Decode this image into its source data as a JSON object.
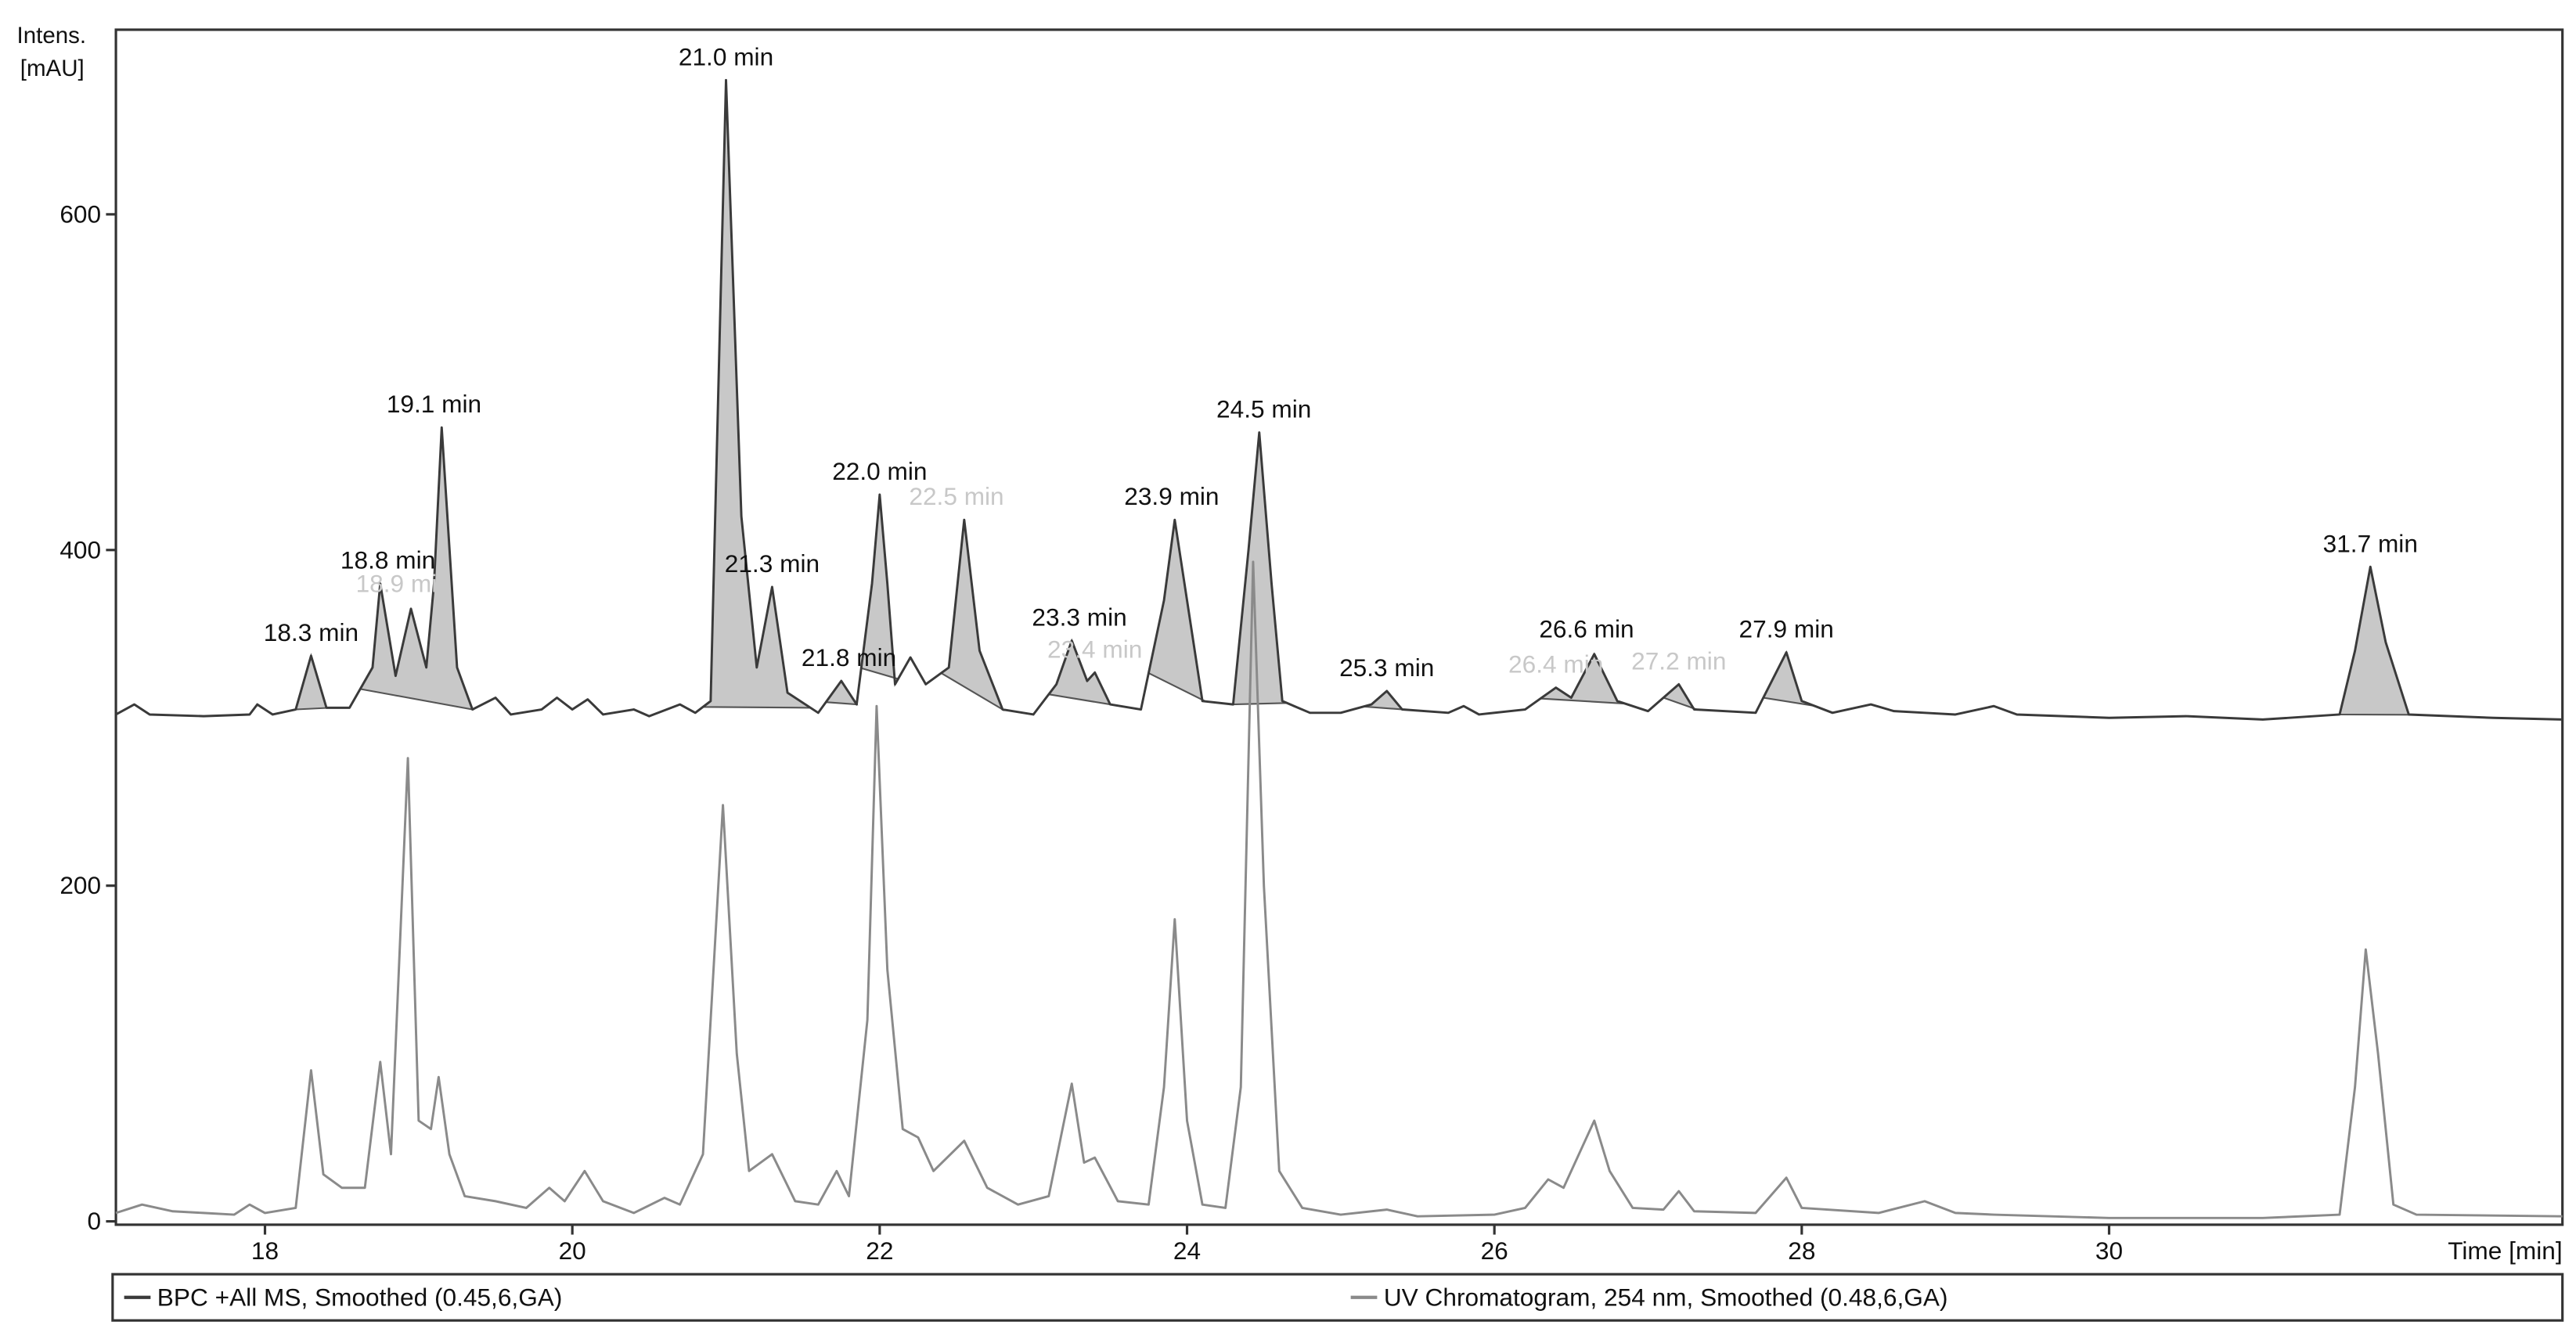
{
  "chart_data": {
    "type": "line",
    "y_label": [
      "Intens.",
      "[mAU]"
    ],
    "x_label": "Time [min]",
    "xlim": [
      17.03,
      32.95
    ],
    "ylim": [
      -2,
      710
    ],
    "xticks": [
      18,
      20,
      22,
      24,
      26,
      28,
      30
    ],
    "yticks": [
      0,
      200,
      400,
      600
    ],
    "integration_fill": "#c8c8c8",
    "series": [
      {
        "name": "BPC +All MS, Smoothed (0.45,6,GA)",
        "color": "#3a3a3a",
        "x": [
          17.03,
          17.15,
          17.25,
          17.6,
          17.9,
          17.95,
          18.05,
          18.2,
          18.3,
          18.4,
          18.55,
          18.7,
          18.75,
          18.85,
          18.95,
          19.05,
          19.1,
          19.15,
          19.25,
          19.35,
          19.5,
          19.6,
          19.8,
          19.9,
          20.0,
          20.1,
          20.2,
          20.4,
          20.5,
          20.7,
          20.8,
          20.9,
          21.0,
          21.1,
          21.2,
          21.3,
          21.4,
          21.6,
          21.75,
          21.85,
          21.95,
          22.0,
          22.05,
          22.1,
          22.2,
          22.3,
          22.45,
          22.55,
          22.65,
          22.8,
          23.0,
          23.15,
          23.25,
          23.35,
          23.4,
          23.5,
          23.7,
          23.85,
          23.92,
          24.0,
          24.1,
          24.3,
          24.4,
          24.47,
          24.55,
          24.62,
          24.8,
          25.0,
          25.2,
          25.3,
          25.4,
          25.7,
          25.8,
          25.9,
          26.2,
          26.4,
          26.5,
          26.65,
          26.8,
          27.0,
          27.2,
          27.3,
          27.7,
          27.9,
          28.0,
          28.2,
          28.45,
          28.6,
          28.8,
          29.0,
          29.25,
          29.4,
          30.0,
          30.5,
          31.0,
          31.5,
          31.6,
          31.7,
          31.8,
          31.95,
          32.5,
          32.95
        ],
        "values": [
          302,
          308,
          302,
          301,
          302,
          308,
          302,
          305,
          337,
          306,
          306,
          330,
          380,
          325,
          365,
          330,
          380,
          473,
          330,
          305,
          312,
          302,
          305,
          312,
          305,
          311,
          302,
          305,
          301,
          308,
          303,
          310,
          680,
          420,
          330,
          378,
          315,
          303,
          322,
          308,
          380,
          433,
          380,
          320,
          336,
          320,
          330,
          418,
          340,
          305,
          302,
          320,
          346,
          322,
          327,
          308,
          305,
          370,
          418,
          370,
          310,
          308,
          400,
          470,
          380,
          310,
          303,
          303,
          308,
          316,
          305,
          303,
          307,
          302,
          305,
          318,
          312,
          338,
          310,
          304,
          320,
          305,
          303,
          339,
          310,
          303,
          308,
          304,
          303,
          302,
          307,
          302,
          300,
          301,
          299,
          302,
          340,
          390,
          345,
          302,
          300,
          299
        ]
      },
      {
        "name": "UV Chromatogram, 254 nm, Smoothed (0.48,6,GA)",
        "color": "#8a8a8a",
        "x": [
          17.03,
          17.2,
          17.4,
          17.6,
          17.8,
          17.9,
          18.0,
          18.2,
          18.3,
          18.38,
          18.5,
          18.65,
          18.75,
          18.82,
          18.93,
          19.0,
          19.08,
          19.13,
          19.2,
          19.3,
          19.5,
          19.7,
          19.85,
          19.95,
          20.08,
          20.2,
          20.4,
          20.6,
          20.7,
          20.85,
          20.98,
          21.07,
          21.15,
          21.3,
          21.45,
          21.6,
          21.72,
          21.8,
          21.92,
          21.98,
          22.05,
          22.15,
          22.25,
          22.35,
          22.55,
          22.7,
          22.9,
          23.1,
          23.25,
          23.33,
          23.4,
          23.55,
          23.75,
          23.85,
          23.92,
          24.0,
          24.1,
          24.25,
          24.35,
          24.43,
          24.5,
          24.6,
          24.75,
          25.0,
          25.3,
          25.5,
          26.0,
          26.2,
          26.35,
          26.45,
          26.65,
          26.75,
          26.9,
          27.1,
          27.2,
          27.3,
          27.7,
          27.9,
          28.0,
          28.5,
          28.8,
          29.0,
          29.25,
          30.0,
          31.0,
          31.5,
          31.6,
          31.67,
          31.75,
          31.85,
          32.0,
          32.95
        ],
        "values": [
          5,
          10,
          6,
          5,
          4,
          10,
          5,
          8,
          90,
          28,
          20,
          20,
          95,
          40,
          276,
          60,
          55,
          86,
          40,
          15,
          12,
          8,
          20,
          12,
          30,
          12,
          5,
          14,
          10,
          40,
          248,
          100,
          30,
          40,
          12,
          10,
          30,
          15,
          120,
          307,
          150,
          55,
          50,
          30,
          48,
          20,
          10,
          15,
          82,
          35,
          38,
          12,
          10,
          80,
          180,
          60,
          10,
          8,
          80,
          393,
          200,
          30,
          8,
          4,
          7,
          3,
          4,
          8,
          25,
          20,
          60,
          30,
          8,
          7,
          18,
          6,
          5,
          26,
          8,
          5,
          12,
          5,
          4,
          2,
          2,
          4,
          80,
          162,
          100,
          10,
          4,
          3
        ]
      }
    ],
    "integrations": [
      [
        18.2,
        18.42
      ],
      [
        18.62,
        19.35
      ],
      [
        20.85,
        21.55
      ],
      [
        21.65,
        21.85
      ],
      [
        21.88,
        22.12
      ],
      [
        22.4,
        22.8
      ],
      [
        23.1,
        23.55
      ],
      [
        23.75,
        24.12
      ],
      [
        24.3,
        24.65
      ],
      [
        25.15,
        25.45
      ],
      [
        26.3,
        26.85
      ],
      [
        27.1,
        27.32
      ],
      [
        27.75,
        28.08
      ],
      [
        31.5,
        32.0
      ]
    ],
    "annotations": [
      {
        "x": 18.3,
        "y": 337,
        "label": "18.3 min",
        "color": "#111111"
      },
      {
        "x": 18.8,
        "y": 380,
        "label": "18.8 min",
        "color": "#111111"
      },
      {
        "x": 18.9,
        "y": 366,
        "label": "18.9 min",
        "color": "#c8c8c8"
      },
      {
        "x": 19.1,
        "y": 473,
        "label": "19.1 min",
        "color": "#111111"
      },
      {
        "x": 21.0,
        "y": 680,
        "label": "21.0 min",
        "color": "#111111"
      },
      {
        "x": 21.3,
        "y": 378,
        "label": "21.3 min",
        "color": "#111111"
      },
      {
        "x": 21.8,
        "y": 322,
        "label": "21.8 min",
        "color": "#111111"
      },
      {
        "x": 22.0,
        "y": 433,
        "label": "22.0 min",
        "color": "#111111"
      },
      {
        "x": 22.5,
        "y": 418,
        "label": "22.5 min",
        "color": "#c8c8c8"
      },
      {
        "x": 23.3,
        "y": 346,
        "label": "23.3 min",
        "color": "#111111"
      },
      {
        "x": 23.4,
        "y": 327,
        "label": "23.4 min",
        "color": "#c8c8c8"
      },
      {
        "x": 23.9,
        "y": 418,
        "label": "23.9 min",
        "color": "#111111"
      },
      {
        "x": 24.5,
        "y": 470,
        "label": "24.5 min",
        "color": "#111111"
      },
      {
        "x": 25.3,
        "y": 316,
        "label": "25.3 min",
        "color": "#111111"
      },
      {
        "x": 26.4,
        "y": 318,
        "label": "26.4 min",
        "color": "#c8c8c8"
      },
      {
        "x": 26.6,
        "y": 339,
        "label": "26.6 min",
        "color": "#111111"
      },
      {
        "x": 27.2,
        "y": 320,
        "label": "27.2 min",
        "color": "#c8c8c8"
      },
      {
        "x": 27.9,
        "y": 339,
        "label": "27.9 min",
        "color": "#111111"
      },
      {
        "x": 31.7,
        "y": 390,
        "label": "31.7 min",
        "color": "#111111"
      }
    ]
  }
}
